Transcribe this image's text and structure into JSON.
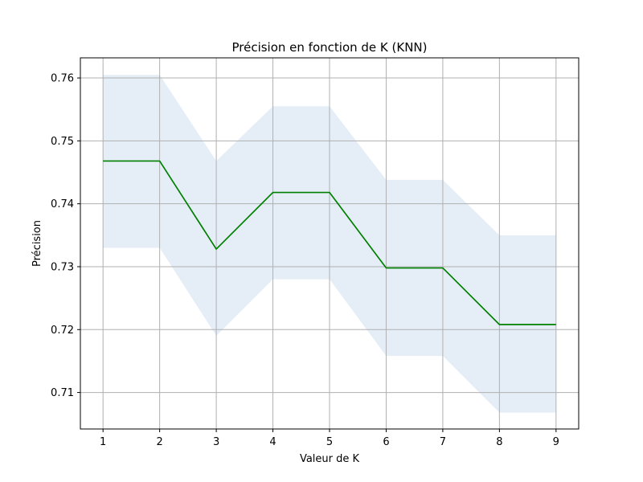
{
  "chart_data": {
    "type": "line",
    "title": "Précision en fonction de K (KNN)",
    "xlabel": "Valeur de K",
    "ylabel": "Précision",
    "x": [
      1,
      2,
      3,
      4,
      5,
      6,
      7,
      8,
      9
    ],
    "series": [
      {
        "values": [
          0.7468,
          0.7468,
          0.7328,
          0.7418,
          0.7418,
          0.7298,
          0.7298,
          0.7208,
          0.7208
        ],
        "lower": [
          0.733,
          0.733,
          0.719,
          0.728,
          0.728,
          0.7158,
          0.7158,
          0.7068,
          0.7068
        ],
        "upper": [
          0.7605,
          0.7605,
          0.7468,
          0.7555,
          0.7555,
          0.7438,
          0.7438,
          0.735,
          0.735
        ],
        "color": "#008000",
        "band_color": "#e5eef7"
      }
    ],
    "xlim": [
      0.6,
      9.4
    ],
    "ylim": [
      0.7042,
      0.7632
    ],
    "xticks": [
      "1",
      "2",
      "3",
      "4",
      "5",
      "6",
      "7",
      "8",
      "9"
    ],
    "yticks": [
      "0.71",
      "0.72",
      "0.73",
      "0.74",
      "0.75",
      "0.76"
    ],
    "grid": true
  }
}
